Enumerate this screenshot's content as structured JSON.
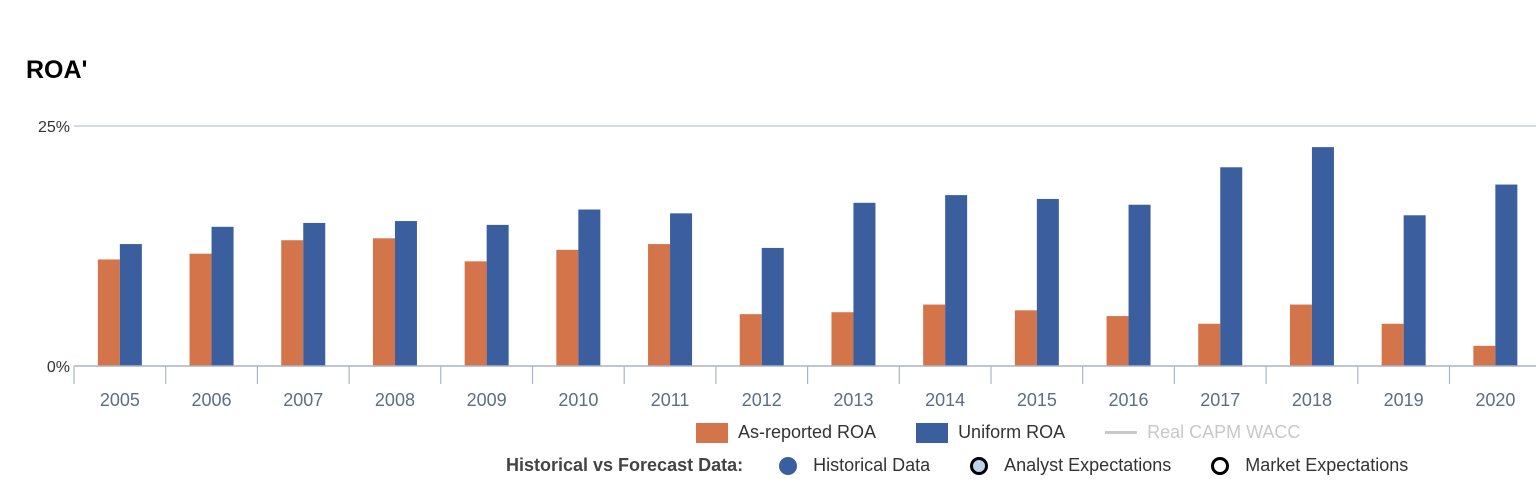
{
  "chart_data": {
    "type": "bar",
    "title": "ROA'",
    "categories": [
      "2005",
      "2006",
      "2007",
      "2008",
      "2009",
      "2010",
      "2011",
      "2012",
      "2013",
      "2014",
      "2015",
      "2016",
      "2017",
      "2018",
      "2019",
      "2020"
    ],
    "series": [
      {
        "name": "As-reported ROA",
        "color": "#d4744a",
        "values": [
          11.1,
          11.7,
          13.1,
          13.3,
          10.9,
          12.1,
          12.7,
          5.4,
          5.6,
          6.4,
          5.8,
          5.2,
          4.4,
          6.4,
          4.4,
          2.1
        ]
      },
      {
        "name": "Uniform ROA",
        "color": "#3a5e9e",
        "values": [
          12.7,
          14.5,
          14.9,
          15.1,
          14.7,
          16.3,
          15.9,
          12.3,
          17.0,
          17.8,
          17.4,
          16.8,
          20.7,
          22.8,
          15.7,
          18.9
        ]
      }
    ],
    "yticks": [
      "0%",
      "25%"
    ],
    "ylim": [
      0,
      25
    ],
    "grid": false
  },
  "legend": {
    "series": [
      {
        "label": "As-reported ROA",
        "color": "#d4744a",
        "kind": "box"
      },
      {
        "label": "Uniform ROA",
        "color": "#3a5e9e",
        "kind": "box"
      },
      {
        "label": "Real CAPM WACC",
        "color": "#c8c8c8",
        "kind": "line",
        "disabled": true
      }
    ],
    "forecast": {
      "title": "Historical vs Forecast Data:",
      "items": [
        {
          "label": "Historical Data",
          "style": "filled",
          "color": "#3a5e9e"
        },
        {
          "label": "Analyst Expectations",
          "style": "outline-light",
          "color": "#bcd3ee"
        },
        {
          "label": "Market Expectations",
          "style": "outline-white",
          "color": "#ffffff"
        }
      ]
    }
  }
}
